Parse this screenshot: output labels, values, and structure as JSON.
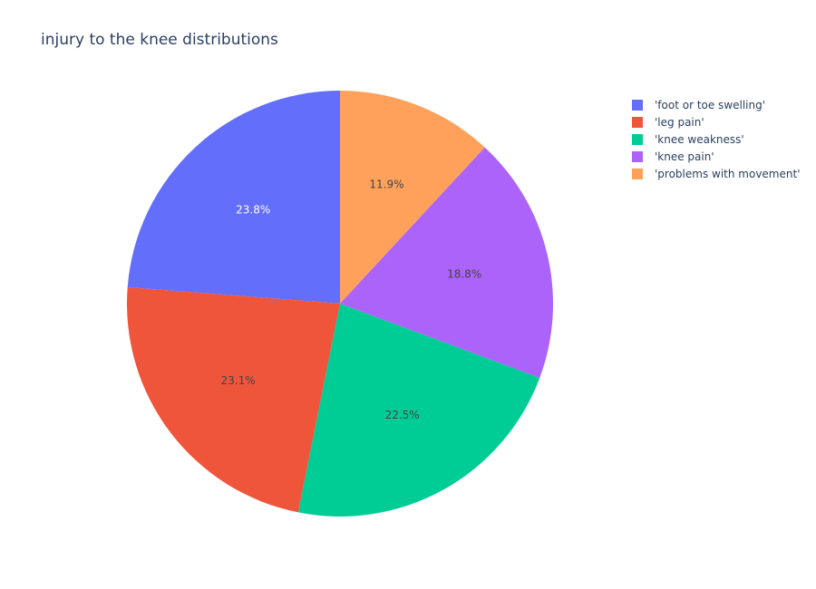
{
  "chart_data": {
    "type": "pie",
    "title": "injury to the knee distributions",
    "labels": [
      "'foot or toe swelling'",
      "'leg pain'",
      "'knee weakness'",
      "'knee pain'",
      "'problems with movement'"
    ],
    "values": [
      23.8,
      23.1,
      22.5,
      18.8,
      11.9
    ],
    "value_labels": [
      "23.8%",
      "23.1%",
      "22.5%",
      "18.8%",
      "11.9%"
    ],
    "colors": [
      "#636efa",
      "#ef553b",
      "#00cc96",
      "#ab63fa",
      "#ffa15a"
    ],
    "label_text_colors": [
      "#ffffff",
      "#444444",
      "#444444",
      "#444444",
      "#444444"
    ],
    "direction": "counterclockwise",
    "start_angle": "12 o'clock",
    "legend_position": "top-right"
  }
}
